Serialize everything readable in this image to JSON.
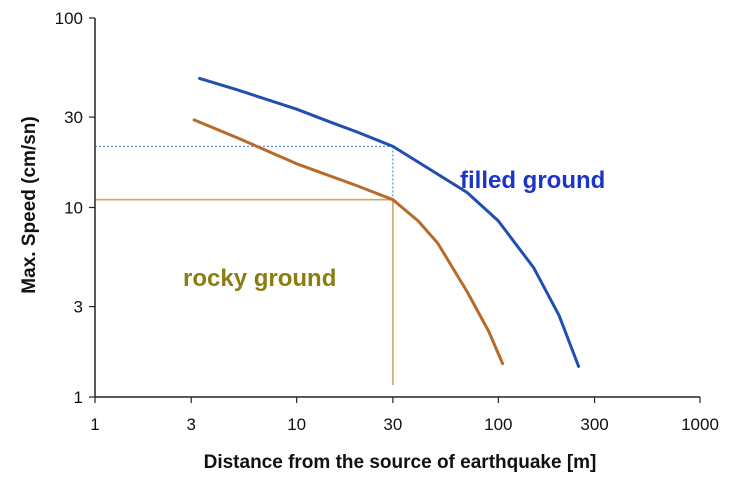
{
  "chart_data": {
    "type": "line",
    "xlabel": "Distance from the source of earthquake [m]",
    "ylabel": "Max. Speed  (cm/sn)",
    "x_scale": "log",
    "y_scale": "log",
    "xlim": [
      1,
      1000
    ],
    "ylim": [
      1,
      100
    ],
    "x_ticks": [
      {
        "value": 1,
        "label": "1"
      },
      {
        "value": 3,
        "label": "3"
      },
      {
        "value": 10,
        "label": "10"
      },
      {
        "value": 30,
        "label": "30"
      },
      {
        "value": 100,
        "label": "100"
      },
      {
        "value": 300,
        "label": "300"
      },
      {
        "value": 1000,
        "label": "1000"
      }
    ],
    "y_ticks": [
      {
        "value": 1,
        "label": "1"
      },
      {
        "value": 3,
        "label": "3"
      },
      {
        "value": 10,
        "label": "10"
      },
      {
        "value": 30,
        "label": "30"
      },
      {
        "value": 100,
        "label": "100"
      }
    ],
    "grid": false,
    "series": [
      {
        "name": "filled ground",
        "color": "#1f4fb0",
        "label_color": "#1c34c8",
        "points": [
          [
            3.3,
            48
          ],
          [
            5,
            42
          ],
          [
            10,
            33
          ],
          [
            15,
            28
          ],
          [
            20,
            25
          ],
          [
            30,
            21
          ],
          [
            50,
            15
          ],
          [
            70,
            12
          ],
          [
            100,
            8.5
          ],
          [
            150,
            4.8
          ],
          [
            200,
            2.7
          ],
          [
            250,
            1.45
          ]
        ]
      },
      {
        "name": "rocky ground",
        "color": "#b86a2a",
        "label_color": "#8c7d12",
        "points": [
          [
            3.1,
            29
          ],
          [
            5,
            23.5
          ],
          [
            10,
            17
          ],
          [
            20,
            13
          ],
          [
            30,
            11
          ],
          [
            40,
            8.5
          ],
          [
            50,
            6.5
          ],
          [
            70,
            3.6
          ],
          [
            90,
            2.2
          ],
          [
            105,
            1.5
          ]
        ]
      }
    ],
    "reference_lines": [
      {
        "series": "filled ground",
        "x": 30,
        "y": 21,
        "color": "#6b8fd8"
      },
      {
        "series": "rocky ground",
        "x": 30,
        "y": 11,
        "color": "#d0a46a"
      }
    ]
  }
}
